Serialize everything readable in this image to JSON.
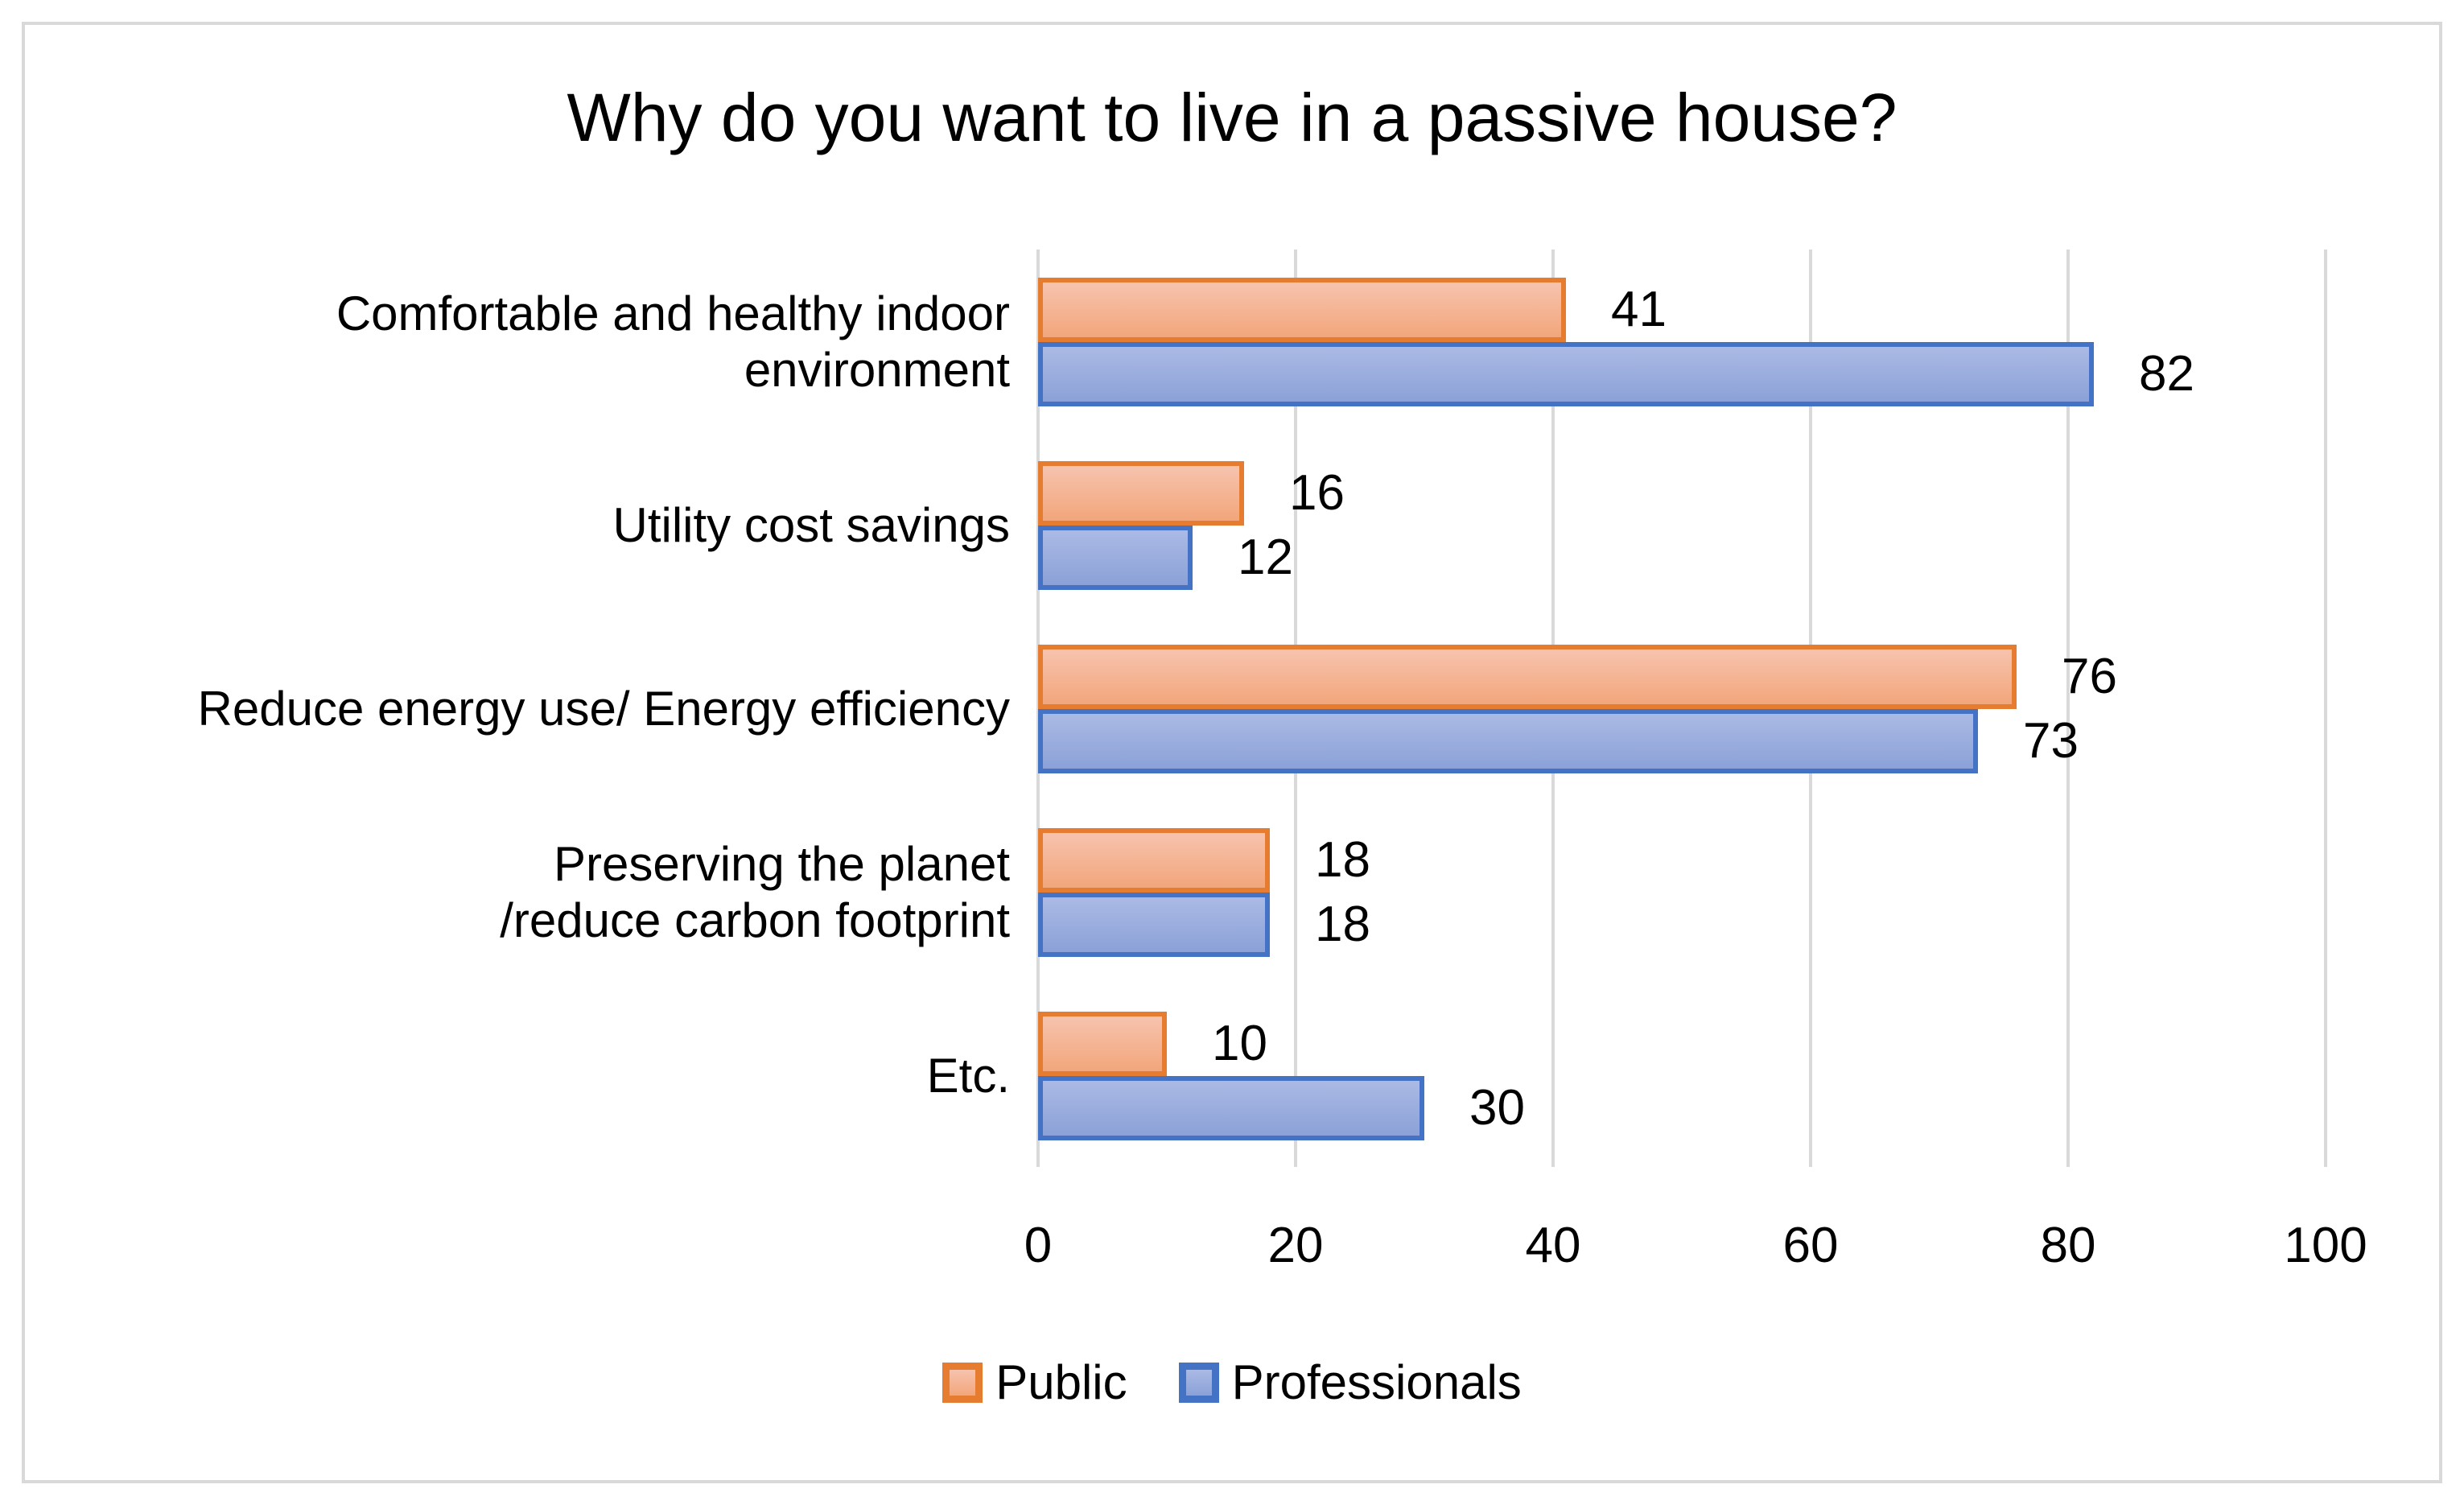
{
  "chart_data": {
    "type": "bar",
    "orientation": "horizontal",
    "title": "Why do you want to live in a passive house?",
    "categories": [
      "Comfortable and healthy indoor environment",
      "Utility cost savings",
      "Reduce energy use/ Energy efficiency",
      "Preserving the planet /reduce carbon footprint",
      "Etc."
    ],
    "category_label_lines": [
      [
        "Comfortable and healthy indoor",
        "environment"
      ],
      [
        "Utility cost savings"
      ],
      [
        "Reduce energy use/ Energy efficiency"
      ],
      [
        "Preserving the planet",
        "/reduce carbon footprint"
      ],
      [
        "Etc."
      ]
    ],
    "series": [
      {
        "name": "Public",
        "values": [
          41,
          16,
          76,
          18,
          10
        ],
        "border_color": "#e57c30",
        "fill_top": "#f7c3ae",
        "fill_bottom": "#f2a67b"
      },
      {
        "name": "Professionals",
        "values": [
          82,
          12,
          73,
          18,
          30
        ],
        "border_color": "#4472c4",
        "fill_top": "#abbae5",
        "fill_bottom": "#8ba1d7"
      }
    ],
    "xlim": [
      0,
      100
    ],
    "xticks": [
      0,
      20,
      40,
      60,
      80,
      100
    ],
    "grid": true,
    "legend_position": "bottom",
    "value_labels": true
  },
  "styles": {
    "gridline_color": "#d9d9d9",
    "frame_border_color": "#d9d9d9",
    "text_color": "#000000",
    "background_color": "#ffffff"
  }
}
